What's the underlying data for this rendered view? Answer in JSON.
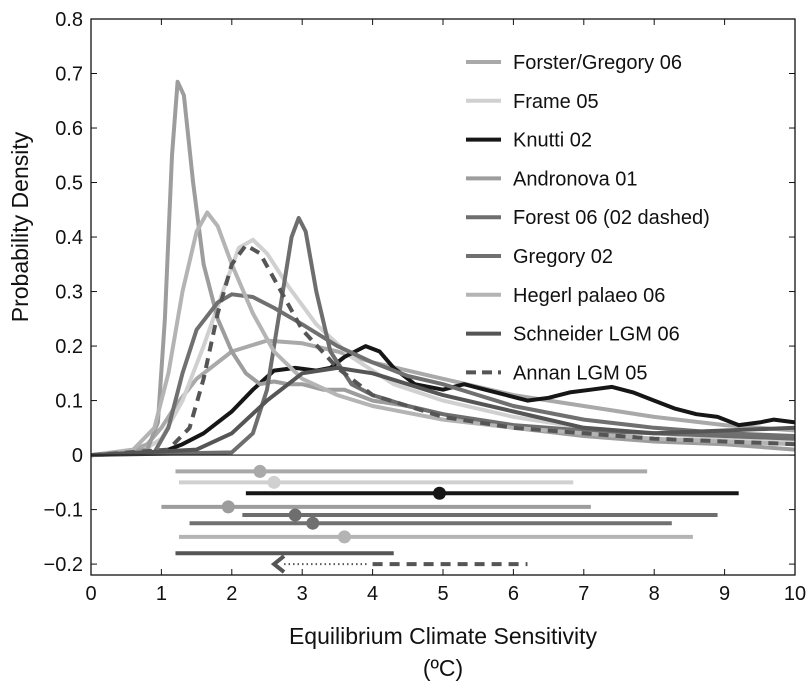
{
  "chart_data": {
    "type": "line",
    "xlabel": "Equilibrium Climate Sensitivity",
    "xunit": "(ºC)",
    "ylabel": "Probability Density",
    "xlim": [
      0,
      10
    ],
    "ylim": [
      -0.22,
      0.8
    ],
    "x_ticks": [
      "0",
      "1",
      "2",
      "3",
      "4",
      "5",
      "6",
      "7",
      "8",
      "9",
      "10"
    ],
    "y_ticks": [
      "0.8",
      "0.7",
      "0.6",
      "0.5",
      "0.4",
      "0.3",
      "0.2",
      "0.1",
      "0",
      "−0.1",
      "−0.2"
    ],
    "grid": false,
    "legend_position": "top-right",
    "series": [
      {
        "name": "Forster/Gregory 06",
        "color": "#a9a9a9",
        "dash": "solid",
        "points": [
          [
            0,
            0
          ],
          [
            0.5,
            0.005
          ],
          [
            0.8,
            0.02
          ],
          [
            1.0,
            0.05
          ],
          [
            1.2,
            0.09
          ],
          [
            1.5,
            0.14
          ],
          [
            2.0,
            0.19
          ],
          [
            2.5,
            0.21
          ],
          [
            3.0,
            0.205
          ],
          [
            3.5,
            0.19
          ],
          [
            4.0,
            0.17
          ],
          [
            5.0,
            0.14
          ],
          [
            6.0,
            0.11
          ],
          [
            7.0,
            0.09
          ],
          [
            8.0,
            0.07
          ],
          [
            9.0,
            0.055
          ],
          [
            10.0,
            0.045
          ]
        ]
      },
      {
        "name": "Frame 05",
        "color": "#d0d0d0",
        "dash": "solid",
        "points": [
          [
            0,
            0
          ],
          [
            0.7,
            0.005
          ],
          [
            1.0,
            0.03
          ],
          [
            1.3,
            0.1
          ],
          [
            1.6,
            0.2
          ],
          [
            1.9,
            0.31
          ],
          [
            2.1,
            0.38
          ],
          [
            2.3,
            0.395
          ],
          [
            2.5,
            0.37
          ],
          [
            2.8,
            0.31
          ],
          [
            3.2,
            0.24
          ],
          [
            3.7,
            0.18
          ],
          [
            4.3,
            0.13
          ],
          [
            5.0,
            0.1
          ],
          [
            6.0,
            0.07
          ],
          [
            7.0,
            0.05
          ],
          [
            8.0,
            0.04
          ],
          [
            9.0,
            0.03
          ],
          [
            10.0,
            0.025
          ]
        ]
      },
      {
        "name": "Knutti 02",
        "color": "#161616",
        "dash": "solid",
        "points": [
          [
            0,
            0
          ],
          [
            1.0,
            0.005
          ],
          [
            1.3,
            0.02
          ],
          [
            1.6,
            0.04
          ],
          [
            2.0,
            0.08
          ],
          [
            2.3,
            0.12
          ],
          [
            2.6,
            0.155
          ],
          [
            2.9,
            0.16
          ],
          [
            3.2,
            0.155
          ],
          [
            3.4,
            0.16
          ],
          [
            3.6,
            0.18
          ],
          [
            3.9,
            0.2
          ],
          [
            4.1,
            0.19
          ],
          [
            4.3,
            0.16
          ],
          [
            4.6,
            0.13
          ],
          [
            5.0,
            0.12
          ],
          [
            5.3,
            0.13
          ],
          [
            5.6,
            0.12
          ],
          [
            5.9,
            0.11
          ],
          [
            6.2,
            0.1
          ],
          [
            6.5,
            0.105
          ],
          [
            6.8,
            0.115
          ],
          [
            7.1,
            0.12
          ],
          [
            7.4,
            0.125
          ],
          [
            7.7,
            0.115
          ],
          [
            8.0,
            0.1
          ],
          [
            8.3,
            0.085
          ],
          [
            8.6,
            0.075
          ],
          [
            8.9,
            0.07
          ],
          [
            9.2,
            0.055
          ],
          [
            9.5,
            0.06
          ],
          [
            9.7,
            0.065
          ],
          [
            10.0,
            0.06
          ]
        ]
      },
      {
        "name": "Andronova 01",
        "color": "#9d9d9d",
        "dash": "solid",
        "points": [
          [
            0,
            0
          ],
          [
            0.8,
            0.01
          ],
          [
            0.95,
            0.06
          ],
          [
            1.05,
            0.25
          ],
          [
            1.15,
            0.55
          ],
          [
            1.23,
            0.685
          ],
          [
            1.32,
            0.66
          ],
          [
            1.45,
            0.5
          ],
          [
            1.6,
            0.35
          ],
          [
            1.8,
            0.25
          ],
          [
            2.0,
            0.19
          ],
          [
            2.2,
            0.15
          ],
          [
            2.4,
            0.13
          ],
          [
            2.6,
            0.135
          ],
          [
            2.8,
            0.13
          ],
          [
            3.0,
            0.13
          ],
          [
            3.3,
            0.12
          ],
          [
            3.6,
            0.12
          ],
          [
            4.0,
            0.1
          ],
          [
            4.5,
            0.09
          ],
          [
            5.0,
            0.075
          ],
          [
            5.5,
            0.06
          ],
          [
            6.0,
            0.05
          ],
          [
            7.0,
            0.035
          ],
          [
            8.0,
            0.025
          ],
          [
            9.0,
            0.02
          ],
          [
            10.0,
            0.01
          ]
        ]
      },
      {
        "name": "Forest 06 (02 dashed)",
        "color": "#6e6e6e",
        "dash": "solid",
        "points": [
          [
            0,
            0
          ],
          [
            2.0,
            0.005
          ],
          [
            2.3,
            0.04
          ],
          [
            2.5,
            0.12
          ],
          [
            2.7,
            0.28
          ],
          [
            2.85,
            0.4
          ],
          [
            2.95,
            0.435
          ],
          [
            3.05,
            0.41
          ],
          [
            3.2,
            0.3
          ],
          [
            3.4,
            0.19
          ],
          [
            3.7,
            0.13
          ],
          [
            4.0,
            0.11
          ],
          [
            4.5,
            0.09
          ],
          [
            5.0,
            0.075
          ],
          [
            6.0,
            0.055
          ],
          [
            7.0,
            0.045
          ],
          [
            8.0,
            0.04
          ],
          [
            9.0,
            0.035
          ],
          [
            10.0,
            0.03
          ]
        ]
      },
      {
        "name": "Gregory 02",
        "color": "#707070",
        "dash": "solid",
        "points": [
          [
            0,
            0
          ],
          [
            0.9,
            0.005
          ],
          [
            1.1,
            0.05
          ],
          [
            1.3,
            0.15
          ],
          [
            1.5,
            0.23
          ],
          [
            1.8,
            0.28
          ],
          [
            2.0,
            0.295
          ],
          [
            2.3,
            0.29
          ],
          [
            2.6,
            0.27
          ],
          [
            3.0,
            0.24
          ],
          [
            3.5,
            0.2
          ],
          [
            4.0,
            0.17
          ],
          [
            4.5,
            0.145
          ],
          [
            5.0,
            0.13
          ],
          [
            5.5,
            0.11
          ],
          [
            6.0,
            0.09
          ],
          [
            7.0,
            0.065
          ],
          [
            8.0,
            0.05
          ],
          [
            9.0,
            0.04
          ],
          [
            10.0,
            0.035
          ]
        ]
      },
      {
        "name": "Hegerl palaeo 06",
        "color": "#b4b4b4",
        "dash": "solid",
        "points": [
          [
            0,
            0
          ],
          [
            0.6,
            0.01
          ],
          [
            0.9,
            0.05
          ],
          [
            1.1,
            0.15
          ],
          [
            1.3,
            0.3
          ],
          [
            1.5,
            0.41
          ],
          [
            1.65,
            0.445
          ],
          [
            1.8,
            0.42
          ],
          [
            2.0,
            0.35
          ],
          [
            2.3,
            0.26
          ],
          [
            2.6,
            0.19
          ],
          [
            3.0,
            0.14
          ],
          [
            3.5,
            0.11
          ],
          [
            4.0,
            0.09
          ],
          [
            5.0,
            0.065
          ],
          [
            6.0,
            0.05
          ],
          [
            7.0,
            0.04
          ],
          [
            8.0,
            0.03
          ],
          [
            9.0,
            0.025
          ],
          [
            10.0,
            0.02
          ]
        ]
      },
      {
        "name": "Schneider LGM 06",
        "color": "#555555",
        "dash": "solid",
        "points": [
          [
            0,
            0
          ],
          [
            1.5,
            0.01
          ],
          [
            2.0,
            0.04
          ],
          [
            2.5,
            0.1
          ],
          [
            3.0,
            0.15
          ],
          [
            3.5,
            0.16
          ],
          [
            4.0,
            0.15
          ],
          [
            4.5,
            0.13
          ],
          [
            5.0,
            0.11
          ],
          [
            6.0,
            0.08
          ],
          [
            7.0,
            0.05
          ],
          [
            8.0,
            0.04
          ],
          [
            9.0,
            0.045
          ],
          [
            10.0,
            0.05
          ]
        ]
      },
      {
        "name": "Annan LGM 05",
        "color": "#555555",
        "dash": "dashed",
        "points": [
          [
            0,
            0
          ],
          [
            1.1,
            0.01
          ],
          [
            1.4,
            0.05
          ],
          [
            1.6,
            0.14
          ],
          [
            1.8,
            0.26
          ],
          [
            2.0,
            0.35
          ],
          [
            2.2,
            0.385
          ],
          [
            2.4,
            0.37
          ],
          [
            2.7,
            0.3
          ],
          [
            3.0,
            0.23
          ],
          [
            3.5,
            0.16
          ],
          [
            4.0,
            0.11
          ],
          [
            5.0,
            0.07
          ],
          [
            6.0,
            0.05
          ],
          [
            7.0,
            0.04
          ],
          [
            8.0,
            0.03
          ],
          [
            9.0,
            0.025
          ],
          [
            10.0,
            0.02
          ]
        ]
      }
    ],
    "ranges": [
      {
        "name": "Forster/Gregory 06",
        "y": -0.03,
        "lo": 1.2,
        "hi": 7.9,
        "mid": 2.4,
        "color": "#a9a9a9",
        "style": "solid"
      },
      {
        "name": "Frame 05",
        "y": -0.05,
        "lo": 1.25,
        "hi": 6.85,
        "mid": 2.6,
        "color": "#d0d0d0",
        "style": "solid"
      },
      {
        "name": "Knutti 02",
        "y": -0.07,
        "lo": 2.2,
        "hi": 9.2,
        "mid": 4.95,
        "color": "#161616",
        "style": "solid"
      },
      {
        "name": "Andronova 01",
        "y": -0.095,
        "lo": 1.0,
        "hi": 7.1,
        "mid": 1.95,
        "color": "#9d9d9d",
        "style": "solid"
      },
      {
        "name": "Forest 06",
        "y": -0.11,
        "lo": 2.15,
        "hi": 8.9,
        "mid": 2.9,
        "color": "#6e6e6e",
        "style": "solid"
      },
      {
        "name": "Gregory 02",
        "y": -0.125,
        "lo": 1.4,
        "hi": 8.25,
        "mid": 3.15,
        "color": "#707070",
        "style": "solid"
      },
      {
        "name": "Hegerl palaeo 06",
        "y": -0.15,
        "lo": 1.25,
        "hi": 8.55,
        "mid": 3.6,
        "color": "#b4b4b4",
        "style": "solid"
      },
      {
        "name": "Schneider LGM 06",
        "y": -0.18,
        "lo": 1.2,
        "hi": 4.3,
        "mid": null,
        "color": "#555555",
        "style": "solid"
      },
      {
        "name": "Annan LGM 05",
        "y": -0.2,
        "lo": 2.6,
        "hi": 6.2,
        "mid": null,
        "color": "#555555",
        "style": "dashed-arrow"
      }
    ]
  }
}
